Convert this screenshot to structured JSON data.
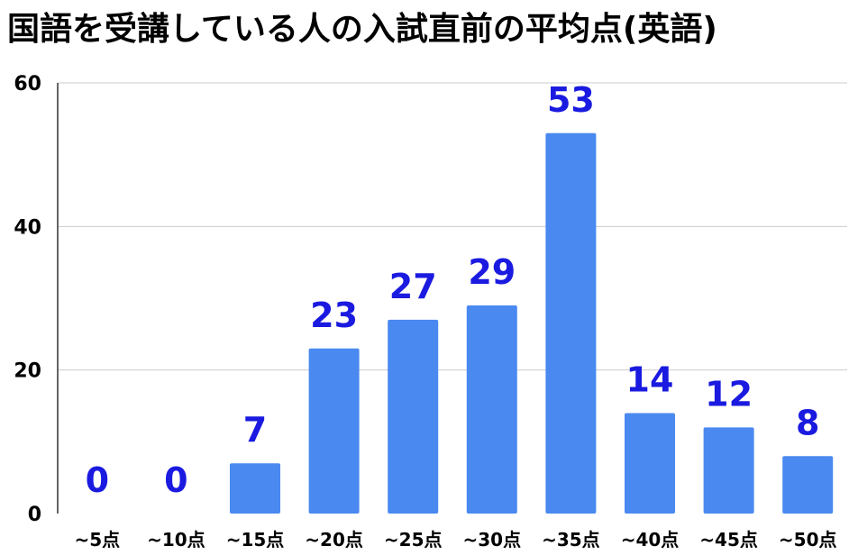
{
  "chart_data": {
    "type": "bar",
    "title": "国語を受講している人の入試直前の平均点(英語)",
    "xlabel": "",
    "ylabel": "",
    "categories": [
      "~5点",
      "~10点",
      "~15点",
      "~20点",
      "~25点",
      "~30点",
      "~35点",
      "~40点",
      "~45点",
      "~50点"
    ],
    "values": [
      0,
      0,
      7,
      23,
      27,
      29,
      53,
      14,
      12,
      8
    ],
    "ylim": [
      0,
      60
    ],
    "yticks": [
      0,
      20,
      40,
      60
    ],
    "grid": true,
    "legend": "none",
    "bar_color": "#4a89f0",
    "label_color": "#1a1ae0",
    "grid_color": "#cccccc",
    "axis_color": "#333333"
  }
}
